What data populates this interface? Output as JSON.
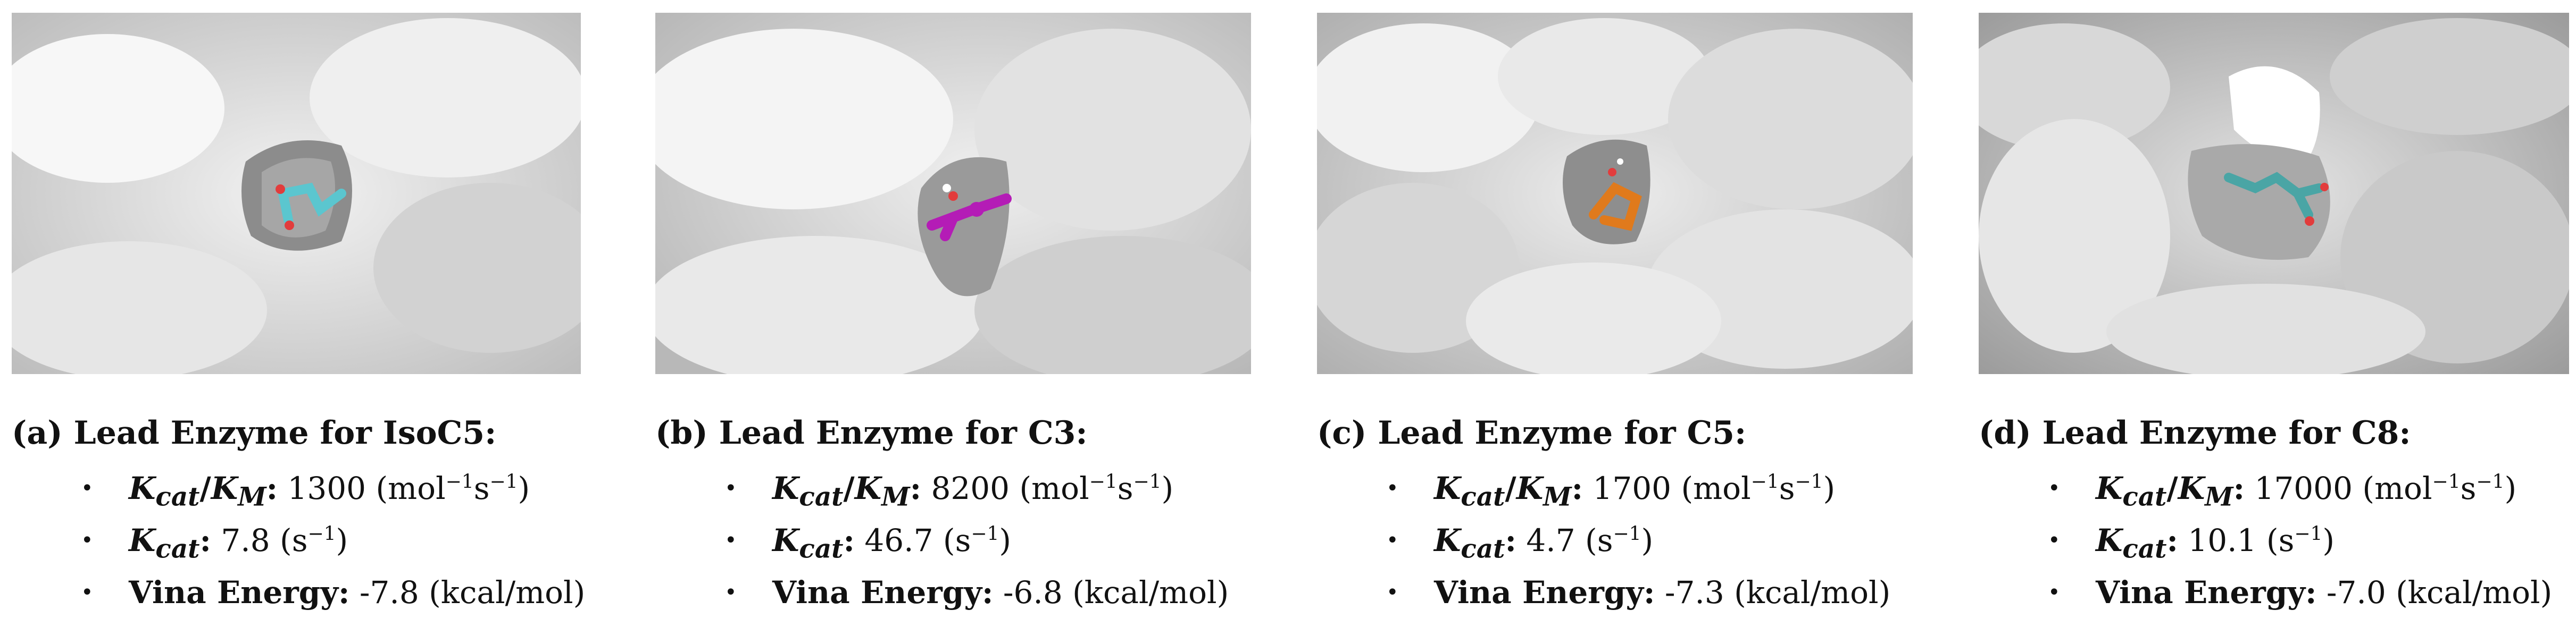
{
  "figure": {
    "panels": [
      {
        "id": "a",
        "label": "(a)",
        "title": "Lead Enzyme for IsoC5:",
        "ligand_color": "#5bc6cf",
        "metrics": {
          "kcat_km": {
            "value": "1300",
            "unit_base": "mol",
            "exp1": "−1",
            "unit_mid": "s",
            "exp2": "−1"
          },
          "kcat": {
            "value": "7.8",
            "unit_base": "s",
            "exp": "−1"
          },
          "vina": {
            "label": "Vina Energy:",
            "value": "-7.8 (kcal/mol)"
          }
        }
      },
      {
        "id": "b",
        "label": "(b)",
        "title": "Lead Enzyme for C3:",
        "ligand_color": "#b41cb6",
        "metrics": {
          "kcat_km": {
            "value": "8200",
            "unit_base": "mol",
            "exp1": "−1",
            "unit_mid": "s",
            "exp2": "−1"
          },
          "kcat": {
            "value": "46.7",
            "unit_base": "s",
            "exp": "−1"
          },
          "vina": {
            "label": "Vina Energy:",
            "value": "-6.8 (kcal/mol)"
          }
        }
      },
      {
        "id": "c",
        "label": "(c)",
        "title": "Lead Enzyme for C5:",
        "ligand_color": "#e07a1c",
        "metrics": {
          "kcat_km": {
            "value": "1700",
            "unit_base": "mol",
            "exp1": "−1",
            "unit_mid": "s",
            "exp2": "−1"
          },
          "kcat": {
            "value": "4.7",
            "unit_base": "s",
            "exp": "−1"
          },
          "vina": {
            "label": "Vina Energy:",
            "value": "-7.3 (kcal/mol)"
          }
        }
      },
      {
        "id": "d",
        "label": "(d)",
        "title": "Lead Enzyme for C8:",
        "ligand_color": "#4aa5a5",
        "metrics": {
          "kcat_km": {
            "value": "17000",
            "unit_base": "mol",
            "exp1": "−1",
            "unit_mid": "s",
            "exp2": "−1"
          },
          "kcat": {
            "value": "10.1",
            "unit_base": "s",
            "exp": "−1"
          },
          "vina": {
            "label": "Vina Energy:",
            "value": "-7.0 (kcal/mol)"
          }
        }
      }
    ],
    "symbols": {
      "K": "K",
      "cat": "cat",
      "M": "M",
      "slash": "/",
      "colon": ":",
      "bullet": "•"
    }
  }
}
